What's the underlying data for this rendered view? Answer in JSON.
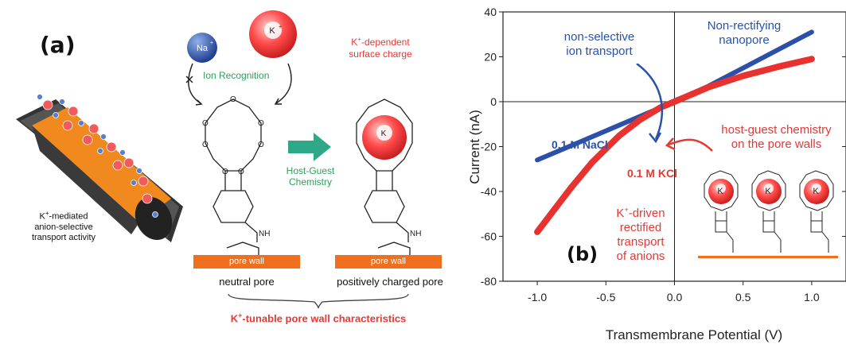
{
  "panel_a": {
    "label": "(a)",
    "na_ion": "Na",
    "k_ion": "K",
    "ion_recognition": "Ion Recognition",
    "k_dependent": "K",
    "k_dependent_rest": "-dependent",
    "surface_charge": "surface charge",
    "host_guest_1": "Host-Guest",
    "host_guest_2": "Chemistry",
    "nh_label": "NH",
    "o_label": "O",
    "pore_wall": "pore wall",
    "neutral_pore": "neutral pore",
    "charged_pore": "positively charged pore",
    "tunable_k": "K",
    "tunable_rest": "-tunable pore wall characteristics",
    "mediated_1": "K",
    "mediated_1_rest": "-mediated",
    "mediated_2": "anion-selective",
    "mediated_3": "transport activity"
  },
  "panel_b": {
    "label": "(b)",
    "ann_non_selective_1": "non-selective",
    "ann_non_selective_2": "ion transport",
    "ann_non_rectifying_1": "Non-rectifying",
    "ann_non_rectifying_2": "nanopore",
    "ann_nacl": "0.1 M NaCl",
    "ann_kcl": "0.1 M KCl",
    "ann_host_1": "host-guest chemistry",
    "ann_host_2": "on the pore walls",
    "ann_kdriven_1": "K",
    "ann_kdriven_1_rest": "-driven",
    "ann_kdriven_2": "rectified",
    "ann_kdriven_3": "transport",
    "ann_kdriven_4": "of anions",
    "k_inset": "K"
  },
  "chart_data": {
    "type": "line",
    "xlabel": "Transmembrane Potential (V)",
    "ylabel": "Current (nA)",
    "xlim": [
      -1.25,
      1.25
    ],
    "ylim": [
      -80,
      40
    ],
    "xticks": [
      "-1.0",
      "-0.5",
      "0.0",
      "0.5",
      "1.0"
    ],
    "yticks": [
      "40",
      "20",
      "0",
      "-20",
      "-40",
      "-60",
      "-80"
    ],
    "colors": {
      "nacl": "#2c4faa",
      "kcl": "#e8322f"
    },
    "series": [
      {
        "name": "0.1 M NaCl",
        "x": [
          -1.0,
          -0.75,
          -0.5,
          -0.25,
          0.0,
          0.25,
          0.5,
          0.75,
          1.0
        ],
        "y": [
          -26,
          -19.5,
          -13,
          -6.5,
          0,
          7,
          15,
          23,
          31
        ]
      },
      {
        "name": "0.1 M KCl",
        "x": [
          -1.0,
          -0.9,
          -0.75,
          -0.6,
          -0.5,
          -0.4,
          -0.25,
          -0.1,
          0.0,
          0.25,
          0.5,
          0.75,
          1.0
        ],
        "y": [
          -58,
          -50,
          -38,
          -27,
          -21,
          -15,
          -8,
          -2.5,
          0,
          6.5,
          11.5,
          15.5,
          19
        ]
      }
    ]
  }
}
